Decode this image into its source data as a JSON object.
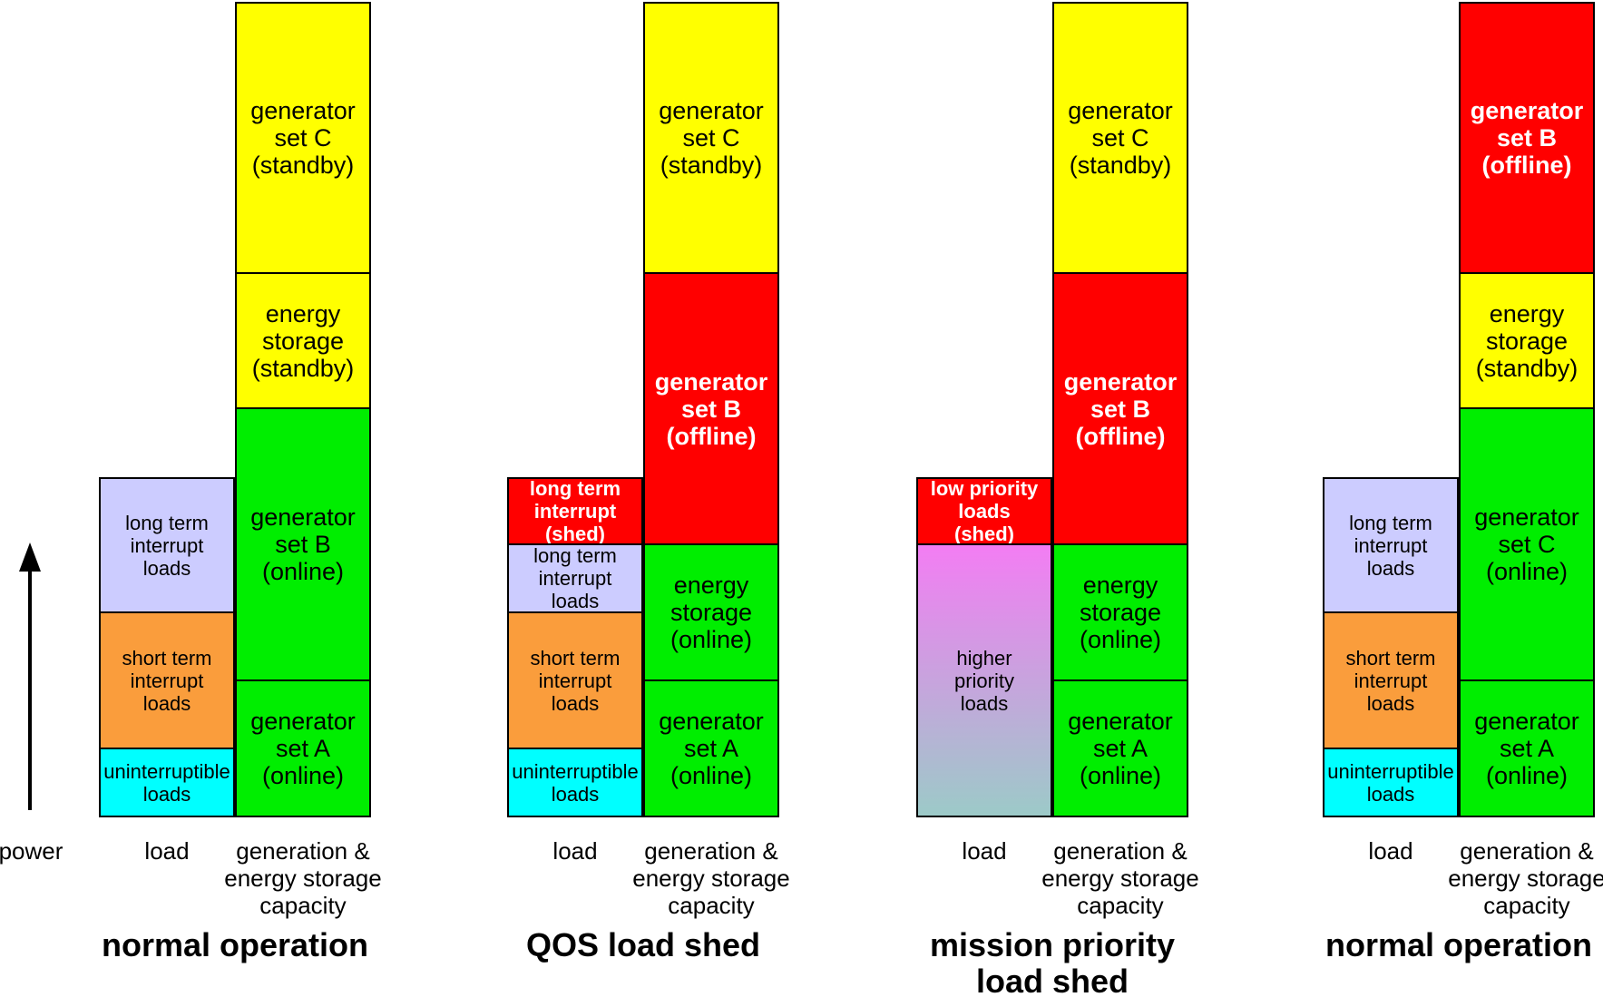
{
  "power_axis": {
    "label": "power"
  },
  "colors": {
    "standby_yellow": "#ffff00",
    "online_green": "#00ee00",
    "offline_red": "#ff0000",
    "long_term_lilac": "#ccccff",
    "short_term_orange": "#fa9d3c",
    "uninterruptible_cyan": "#00ffff",
    "higher_priority_gradient_top": "#f37df3",
    "higher_priority_gradient_bottom": "#9ccac8",
    "border_black": "#000000"
  },
  "panels": [
    {
      "title_lines": [
        "normal operation"
      ],
      "load_caption": "load",
      "capacity_caption_lines": [
        "generation &",
        "energy storage",
        "capacity"
      ],
      "load_bar": {
        "segments": [
          {
            "lines": [
              "long term",
              "interrupt",
              "loads"
            ],
            "bg": "#ccccff",
            "fg": "#000000",
            "bold": false,
            "size": "sm",
            "units": 2
          },
          {
            "lines": [
              "short term",
              "interrupt",
              "loads"
            ],
            "bg": "#fa9d3c",
            "fg": "#000000",
            "bold": false,
            "size": "sm",
            "units": 2
          },
          {
            "lines": [
              "uninterruptible",
              "loads"
            ],
            "bg": "#00ffff",
            "fg": "#000000",
            "bold": false,
            "size": "sm",
            "units": 1
          }
        ]
      },
      "capacity_bar": {
        "segments": [
          {
            "lines": [
              "generator",
              "set C",
              "(standby)"
            ],
            "bg": "#ffff00",
            "fg": "#000000",
            "bold": false,
            "size": "lg",
            "units": 4
          },
          {
            "lines": [
              "energy",
              "storage",
              "(standby)"
            ],
            "bg": "#ffff00",
            "fg": "#000000",
            "bold": false,
            "size": "lg",
            "units": 2
          },
          {
            "lines": [
              "generator",
              "set B",
              "(online)"
            ],
            "bg": "#00ee00",
            "fg": "#000000",
            "bold": false,
            "size": "lg",
            "units": 4
          },
          {
            "lines": [
              "generator",
              "set A",
              "(online)"
            ],
            "bg": "#00ee00",
            "fg": "#000000",
            "bold": false,
            "size": "lg",
            "units": 2
          }
        ]
      }
    },
    {
      "title_lines": [
        "QOS load shed"
      ],
      "load_caption": "load",
      "capacity_caption_lines": [
        "generation &",
        "energy storage",
        "capacity"
      ],
      "load_bar": {
        "segments": [
          {
            "lines": [
              "long term",
              "interrupt",
              "(shed)"
            ],
            "bg": "#ff0000",
            "fg": "#ffffff",
            "bold": true,
            "size": "sm",
            "units": 1
          },
          {
            "lines": [
              "long term",
              "interrupt",
              "loads"
            ],
            "bg": "#ccccff",
            "fg": "#000000",
            "bold": false,
            "size": "sm",
            "units": 1
          },
          {
            "lines": [
              "short term",
              "interrupt",
              "loads"
            ],
            "bg": "#fa9d3c",
            "fg": "#000000",
            "bold": false,
            "size": "sm",
            "units": 2
          },
          {
            "lines": [
              "uninterruptible",
              "loads"
            ],
            "bg": "#00ffff",
            "fg": "#000000",
            "bold": false,
            "size": "sm",
            "units": 1
          }
        ]
      },
      "capacity_bar": {
        "segments": [
          {
            "lines": [
              "generator",
              "set C",
              "(standby)"
            ],
            "bg": "#ffff00",
            "fg": "#000000",
            "bold": false,
            "size": "lg",
            "units": 4
          },
          {
            "lines": [
              "generator",
              "set B",
              "(offline)"
            ],
            "bg": "#ff0000",
            "fg": "#ffffff",
            "bold": true,
            "size": "lg",
            "units": 4
          },
          {
            "lines": [
              "energy",
              "storage",
              "(online)"
            ],
            "bg": "#00ee00",
            "fg": "#000000",
            "bold": false,
            "size": "lg",
            "units": 2
          },
          {
            "lines": [
              "generator",
              "set A",
              "(online)"
            ],
            "bg": "#00ee00",
            "fg": "#000000",
            "bold": false,
            "size": "lg",
            "units": 2
          }
        ]
      }
    },
    {
      "title_lines": [
        "mission priority",
        "load shed"
      ],
      "load_caption": "load",
      "capacity_caption_lines": [
        "generation &",
        "energy storage",
        "capacity"
      ],
      "load_bar": {
        "segments": [
          {
            "lines": [
              "low priority",
              "loads",
              "(shed)"
            ],
            "bg": "#ff0000",
            "fg": "#ffffff",
            "bold": true,
            "size": "sm",
            "units": 1
          },
          {
            "lines": [
              "higher",
              "priority",
              "loads"
            ],
            "bg": [
              "#f37df3",
              "#9ccac8"
            ],
            "fg": "#000000",
            "bold": false,
            "size": "sm",
            "units": 4
          }
        ]
      },
      "capacity_bar": {
        "segments": [
          {
            "lines": [
              "generator",
              "set C",
              "(standby)"
            ],
            "bg": "#ffff00",
            "fg": "#000000",
            "bold": false,
            "size": "lg",
            "units": 4
          },
          {
            "lines": [
              "generator",
              "set B",
              "(offline)"
            ],
            "bg": "#ff0000",
            "fg": "#ffffff",
            "bold": true,
            "size": "lg",
            "units": 4
          },
          {
            "lines": [
              "energy",
              "storage",
              "(online)"
            ],
            "bg": "#00ee00",
            "fg": "#000000",
            "bold": false,
            "size": "lg",
            "units": 2
          },
          {
            "lines": [
              "generator",
              "set A",
              "(online)"
            ],
            "bg": "#00ee00",
            "fg": "#000000",
            "bold": false,
            "size": "lg",
            "units": 2
          }
        ]
      }
    },
    {
      "title_lines": [
        "normal operation"
      ],
      "load_caption": "load",
      "capacity_caption_lines": [
        "generation &",
        "energy storage",
        "capacity"
      ],
      "load_bar": {
        "segments": [
          {
            "lines": [
              "long term",
              "interrupt",
              "loads"
            ],
            "bg": "#ccccff",
            "fg": "#000000",
            "bold": false,
            "size": "sm",
            "units": 2
          },
          {
            "lines": [
              "short term",
              "interrupt",
              "loads"
            ],
            "bg": "#fa9d3c",
            "fg": "#000000",
            "bold": false,
            "size": "sm",
            "units": 2
          },
          {
            "lines": [
              "uninterruptible",
              "loads"
            ],
            "bg": "#00ffff",
            "fg": "#000000",
            "bold": false,
            "size": "sm",
            "units": 1
          }
        ]
      },
      "capacity_bar": {
        "segments": [
          {
            "lines": [
              "generator",
              "set B",
              "(offline)"
            ],
            "bg": "#ff0000",
            "fg": "#ffffff",
            "bold": true,
            "size": "lg",
            "units": 4
          },
          {
            "lines": [
              "energy",
              "storage",
              "(standby)"
            ],
            "bg": "#ffff00",
            "fg": "#000000",
            "bold": false,
            "size": "lg",
            "units": 2
          },
          {
            "lines": [
              "generator",
              "set C",
              "(online)"
            ],
            "bg": "#00ee00",
            "fg": "#000000",
            "bold": false,
            "size": "lg",
            "units": 4
          },
          {
            "lines": [
              "generator",
              "set A",
              "(online)"
            ],
            "bg": "#00ee00",
            "fg": "#000000",
            "bold": false,
            "size": "lg",
            "units": 2
          }
        ]
      }
    }
  ]
}
